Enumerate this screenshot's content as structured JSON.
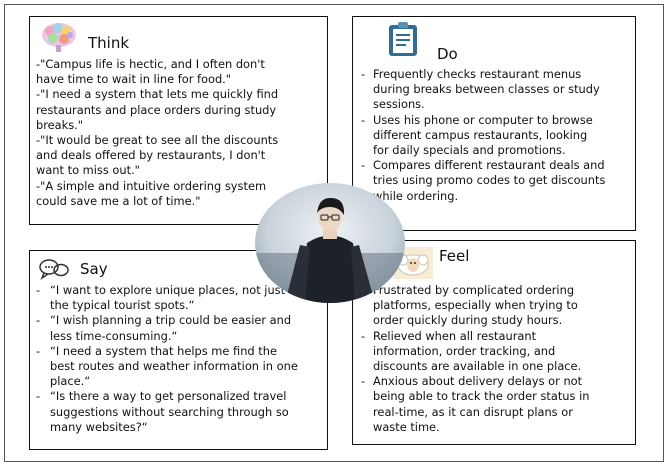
{
  "think": {
    "title": "Think",
    "icon": "brain-icon",
    "lines": [
      "-\"Campus life is hectic, and I often don't",
      "have time to wait in line for food.\"",
      "-\"I need a system that lets me quickly find",
      "restaurants and place orders during study",
      "breaks.\"",
      "-\"It would be great to see all the discounts",
      "and deals offered by restaurants, I don't",
      "want to miss out.\"",
      "-\"A simple and intuitive ordering system",
      "could save me a lot of time.\""
    ]
  },
  "do": {
    "title": "Do",
    "icon": "clipboard-icon",
    "items": [
      [
        "Frequently checks restaurant menus",
        "during breaks between classes or study",
        "sessions."
      ],
      [
        "Uses his phone or computer to browse",
        "different campus restaurants, looking",
        "for daily specials and promotions."
      ],
      [
        "Compares different restaurant deals and",
        "tries using promo codes to get discounts",
        "while ordering."
      ]
    ]
  },
  "say": {
    "title": "Say",
    "icon": "speech-bubbles-icon",
    "items": [
      [
        "“I want to explore unique places, not just",
        "the typical tourist spots.“"
      ],
      [
        "“I wish planning a trip could be easier and",
        "less time-consuming.“"
      ],
      [
        "“I need a system that helps me find the",
        "best routes and weather information in one",
        "place.“"
      ],
      [
        "“Is there a way to get personalized travel",
        "suggestions without searching through so",
        "many websites?“"
      ]
    ]
  },
  "feel": {
    "title": "Feel",
    "icon": "sheep-icon",
    "items": [
      [
        "Frustrated by complicated ordering",
        "platforms, especially when trying to",
        "order quickly during study hours."
      ],
      [
        "Relieved when all restaurant",
        "information, order tracking, and",
        "discounts are available in one place."
      ],
      [
        "Anxious about delivery delays or not",
        "being able to track the order status in",
        "real-time, as it can disrupt plans or",
        "waste time."
      ]
    ]
  },
  "persona": {
    "icon": "persona-photo"
  },
  "colors": {
    "border": "#111111",
    "background": "#ffffff",
    "text": "#111111"
  }
}
